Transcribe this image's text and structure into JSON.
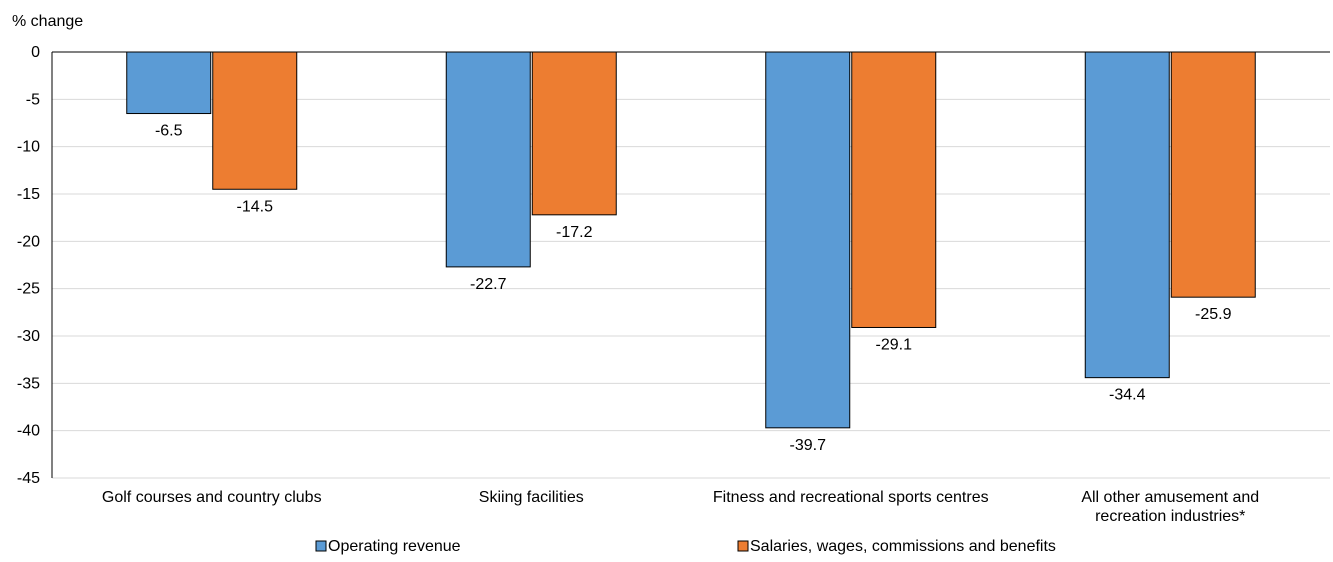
{
  "chart_data": {
    "type": "bar",
    "title": "",
    "ylabel": "% change",
    "xlabel": "",
    "ylim": [
      -45,
      0
    ],
    "yticks": [
      0,
      -5,
      -10,
      -15,
      -20,
      -25,
      -30,
      -35,
      -40,
      -45
    ],
    "grid": true,
    "legend_position": "bottom",
    "categories": [
      [
        "Golf courses and country clubs"
      ],
      [
        "Skiing facilities"
      ],
      [
        "Fitness and recreational sports centres"
      ],
      [
        "All other amusement and",
        "recreation industries*"
      ]
    ],
    "series": [
      {
        "name": "Operating revenue",
        "color": "#5B9BD5",
        "values": [
          -6.5,
          -22.7,
          -39.7,
          -34.4
        ]
      },
      {
        "name": "Salaries, wages, commissions and benefits",
        "color": "#ED7D31",
        "values": [
          -14.5,
          -17.2,
          -29.1,
          -25.9
        ]
      }
    ]
  }
}
